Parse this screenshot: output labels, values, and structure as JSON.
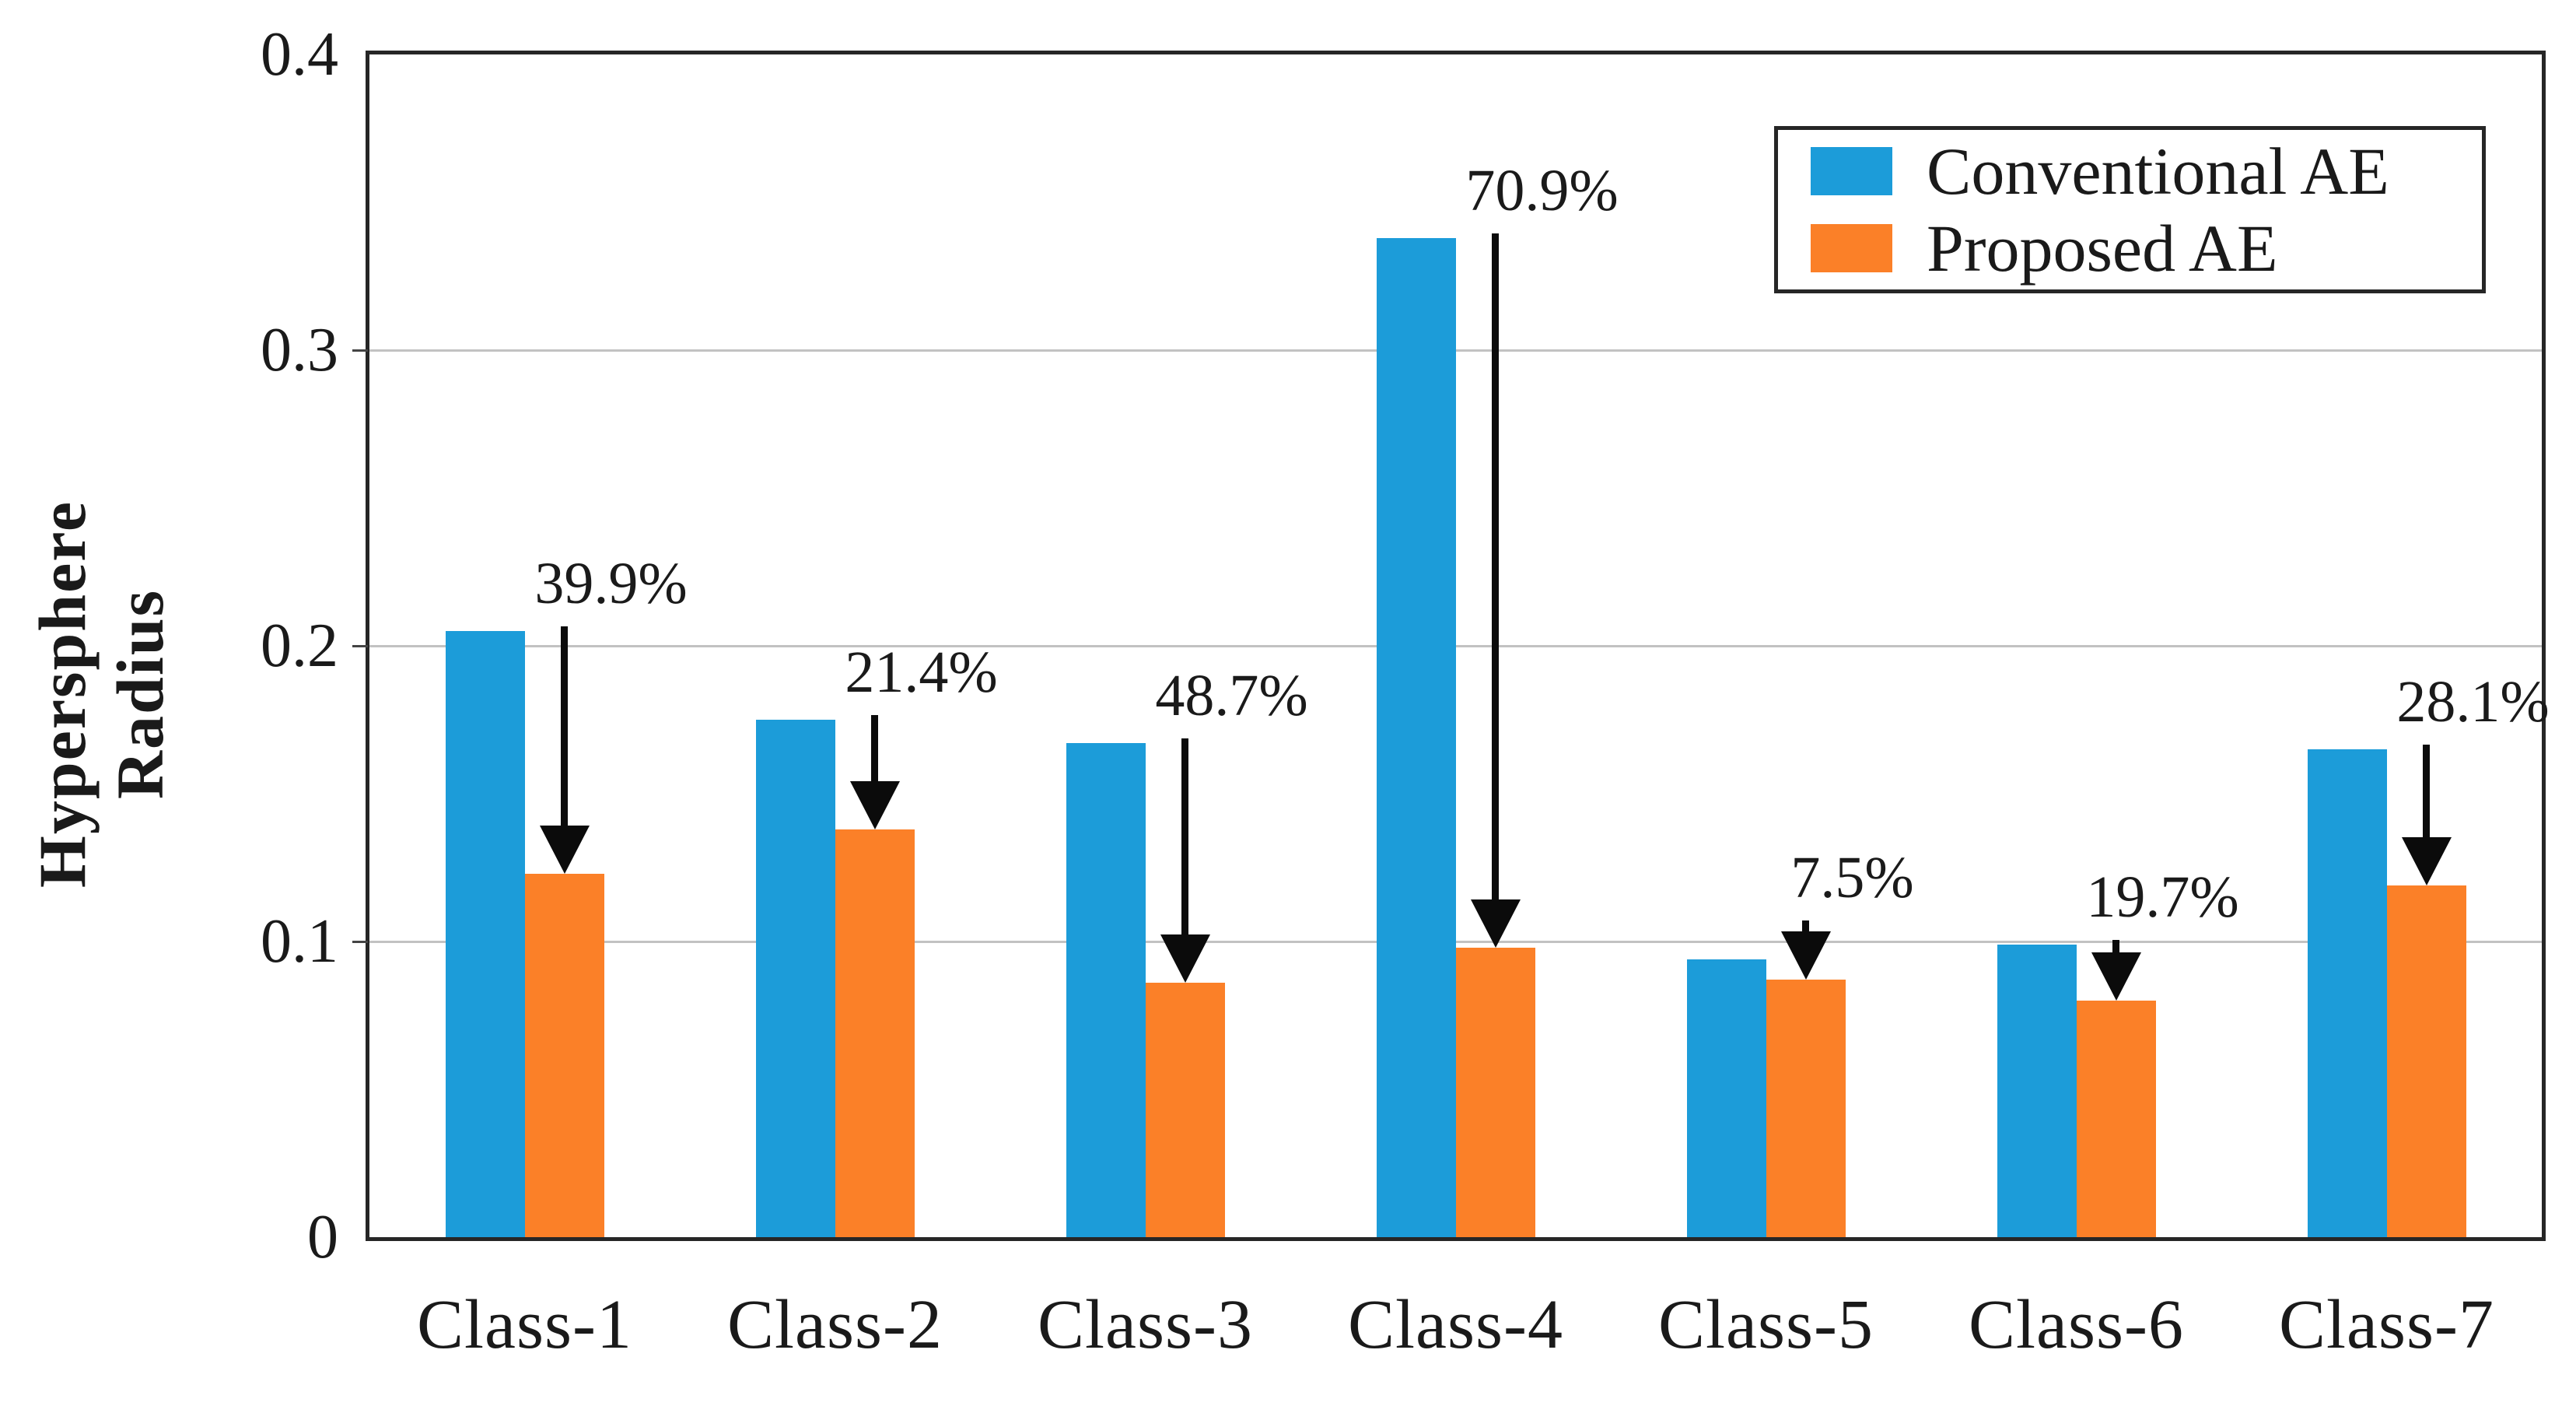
{
  "chart_data": {
    "type": "bar",
    "title": "",
    "categories": [
      "Class-1",
      "Class-2",
      "Class-3",
      "Class-4",
      "Class-5",
      "Class-6",
      "Class-7"
    ],
    "series": [
      {
        "name": "Conventional AE",
        "color": "#1C9CD9",
        "values": [
          0.205,
          0.175,
          0.167,
          0.338,
          0.094,
          0.099,
          0.165
        ]
      },
      {
        "name": "Proposed AE",
        "color": "#FB8028",
        "values": [
          0.123,
          0.138,
          0.086,
          0.098,
          0.087,
          0.08,
          0.119
        ]
      }
    ],
    "annotations": [
      {
        "category": "Class-1",
        "label": "39.9%"
      },
      {
        "category": "Class-2",
        "label": "21.4%"
      },
      {
        "category": "Class-3",
        "label": "48.7%"
      },
      {
        "category": "Class-4",
        "label": "70.9%"
      },
      {
        "category": "Class-5",
        "label": "7.5%"
      },
      {
        "category": "Class-6",
        "label": "19.7%"
      },
      {
        "category": "Class-7",
        "label": "28.1%"
      }
    ],
    "ylabel": "Hypersphere Radius",
    "ylabel_lines": [
      "Hypersphere",
      "Radius"
    ],
    "xlabel": "",
    "ylim": [
      0,
      0.4
    ],
    "yticks": [
      {
        "value": 0.0,
        "label": "0"
      },
      {
        "value": 0.1,
        "label": "0.1"
      },
      {
        "value": 0.2,
        "label": "0.2"
      },
      {
        "value": 0.3,
        "label": "0.3"
      },
      {
        "value": 0.4,
        "label": "0.4"
      }
    ],
    "grid": "horizontal",
    "legend": {
      "position": "top-right",
      "entries": [
        "Conventional AE",
        "Proposed AE"
      ]
    }
  },
  "colors": {
    "conventional": "#1C9CD9",
    "proposed": "#FB8028",
    "grid": "#C2C2C2",
    "axis": "#262626",
    "text": "#1A1A1A",
    "background": "#FFFFFF"
  }
}
